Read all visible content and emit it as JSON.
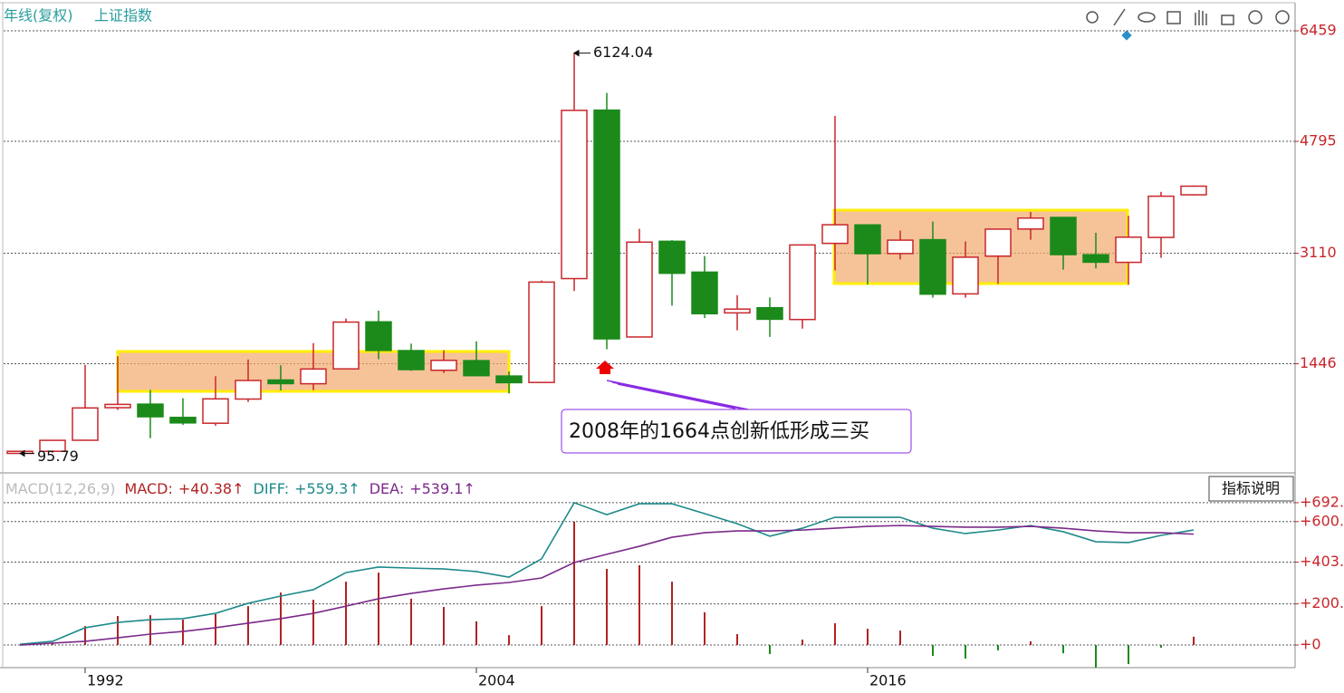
{
  "chart_data": [
    {
      "type": "candlestick",
      "subtitle": "年线(复权)",
      "title": "上证指数",
      "categories": [
        null,
        null,
        "1992",
        null,
        null,
        null,
        null,
        null,
        null,
        null,
        null,
        null,
        null,
        null,
        "2004",
        null,
        null,
        null,
        null,
        null,
        null,
        null,
        null,
        null,
        null,
        null,
        "2016",
        null,
        null,
        null,
        null,
        null,
        null,
        null,
        null,
        null,
        null
      ],
      "open": [
        96.05,
        127.61,
        293.74,
        784.13,
        837.7,
        637.72,
        550.26,
        914.06,
        1200.95,
        1144.89,
        1368.69,
        2077.08,
        1643.48,
        1347.43,
        1492.72,
        1260.78,
        1163.88,
        2728.19,
        5265.0,
        1849.02,
        3289.75,
        2825.33,
        2212.0,
        2289.51,
        2112.13,
        3258.63,
        3536.59,
        3105.31,
        3314.03,
        2497.88,
        3066.34,
        3474.68,
        3649.15,
        3087.51,
        2972.78,
        3347.94,
        3990
      ],
      "high": [
        127.61,
        292.75,
        1429.01,
        1558.95,
        1052.94,
        926.41,
        1258.69,
        1510.17,
        1422.98,
        1756.18,
        2125.72,
        2245.44,
        1748.89,
        1649.6,
        1783.01,
        1328.53,
        2698.9,
        6124.04,
        5522.78,
        3478.01,
        3306.75,
        3067.46,
        2478.38,
        2444.8,
        3239.36,
        5178.19,
        3538.69,
        3450.49,
        3587.03,
        3288.45,
        3474.92,
        3731.69,
        3651.89,
        3418.95,
        3674.4,
        4034.08,
        4130
      ],
      "low": [
        95.79,
        104.96,
        292.76,
        750.46,
        325.89,
        524.43,
        512.83,
        870.18,
        1043.02,
        1047.83,
        1361.21,
        1514.86,
        1339.2,
        1307.4,
        1259.43,
        998.23,
        1161.91,
        2541.53,
        1664.93,
        1844.09,
        2319.74,
        2134.02,
        1949.46,
        1849.65,
        1974.38,
        2850.71,
        2638.3,
        3016.53,
        2440.91,
        2440.91,
        2646.8,
        3312.72,
        2863.65,
        2882.02,
        2635.09,
        3040.69,
        3980
      ],
      "close": [
        127.61,
        292.75,
        780.39,
        833.8,
        647.87,
        555.29,
        917.02,
        1194.1,
        1146.7,
        1366.58,
        2073.48,
        1645.97,
        1357.65,
        1497.04,
        1266.5,
        1161.06,
        2675.47,
        5261.56,
        1820.81,
        3277.14,
        2808.08,
        2199.42,
        2269.13,
        2115.98,
        3234.68,
        3539.18,
        3103.64,
        3307.17,
        2493.9,
        3050.12,
        3473.07,
        3639.78,
        3089.26,
        2974.93,
        3351.76,
        3968.84,
        4120
      ],
      "up_color": "#c8262b",
      "down_color": "#1b8a1b",
      "ylim": [
        -170,
        6855
      ],
      "yticks": [
        6459,
        4795,
        3110,
        1446
      ],
      "grid": true,
      "annotation": "2008年的1664点创新低形成三买"
    },
    {
      "type": "macd",
      "title": "MACD(12,26,9)",
      "series": [
        {
          "name": "MACD:",
          "color": "#b22222",
          "value_label": "+40.38↑",
          "values": [
            0,
            9,
            92,
            141,
            145,
            123,
            150,
            189,
            255,
            220,
            308,
            352,
            225,
            185,
            115,
            48,
            189,
            600,
            370,
            388,
            308,
            159,
            53,
            -44,
            26,
            106,
            79,
            70,
            -53,
            -66,
            -26,
            18,
            -40,
            -110,
            -93,
            -13,
            40.38
          ]
        },
        {
          "name": "DIFF:",
          "color": "#1f8a8a",
          "value_label": "+559.3↑",
          "values": [
            4,
            18,
            84,
            110,
            123,
            128,
            154,
            203,
            238,
            269,
            352,
            379,
            374,
            370,
            357,
            330,
            419,
            692,
            634,
            687,
            687,
            639,
            590,
            529,
            568,
            621,
            621,
            621,
            568,
            542,
            559,
            581,
            551,
            502,
            498,
            533,
            559.3
          ]
        },
        {
          "name": "DEA:",
          "color": "#7b2a8a",
          "value_label": "+539.1↑",
          "values": [
            0,
            9,
            18,
            35,
            53,
            66,
            84,
            106,
            128,
            154,
            189,
            225,
            251,
            273,
            291,
            304,
            326,
            401,
            441,
            480,
            524,
            546,
            555,
            555,
            559,
            568,
            577,
            581,
            577,
            573,
            573,
            577,
            568,
            555,
            546,
            546,
            539.1
          ]
        }
      ],
      "ylim": [
        -110,
        815
      ],
      "yticks": [
        {
          "value": 692,
          "label": "+692."
        },
        {
          "value": 600,
          "label": "+600."
        },
        {
          "value": 403,
          "label": "+403."
        },
        {
          "value": 200,
          "label": "+200."
        },
        {
          "value": 0,
          "label": "+0"
        }
      ],
      "grid": true,
      "button": "指标说明"
    }
  ]
}
